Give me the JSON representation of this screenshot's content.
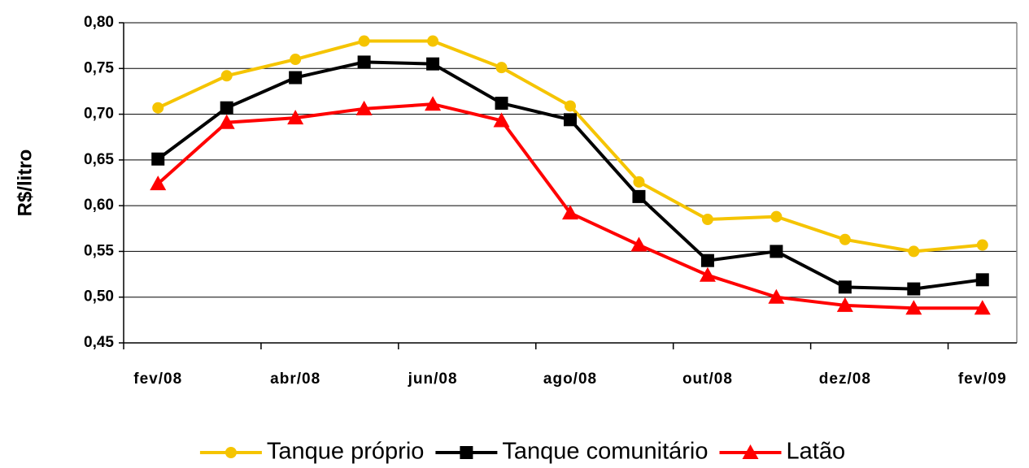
{
  "chart_data": {
    "type": "line",
    "y_label": "R$/litro",
    "categories": [
      "fev/08",
      null,
      "abr/08",
      null,
      "jun/08",
      null,
      "ago/08",
      null,
      "out/08",
      null,
      "dez/08",
      null,
      "fev/09"
    ],
    "series": [
      {
        "name": "Tanque próprio",
        "color": "#f5c400",
        "marker": "circle",
        "values": [
          0.707,
          0.742,
          0.76,
          0.78,
          0.78,
          0.751,
          0.709,
          0.626,
          0.585,
          0.588,
          0.563,
          0.55,
          0.557
        ]
      },
      {
        "name": "Tanque comunitário",
        "color": "#000000",
        "marker": "square",
        "values": [
          0.651,
          0.707,
          0.74,
          0.757,
          0.755,
          0.712,
          0.694,
          0.61,
          0.54,
          0.55,
          0.511,
          0.509,
          0.519
        ]
      },
      {
        "name": "Latão",
        "color": "#ff0000",
        "marker": "triangle",
        "values": [
          0.624,
          0.691,
          0.696,
          0.706,
          0.711,
          0.693,
          0.592,
          0.557,
          0.524,
          0.5,
          0.491,
          0.488,
          0.488
        ]
      }
    ],
    "ylim": [
      0.45,
      0.8
    ],
    "yticks": [
      {
        "value": 0.45,
        "label": "0,45"
      },
      {
        "value": 0.5,
        "label": "0,50"
      },
      {
        "value": 0.55,
        "label": "0,55"
      },
      {
        "value": 0.6,
        "label": "0,60"
      },
      {
        "value": 0.65,
        "label": "0,65"
      },
      {
        "value": 0.7,
        "label": "0,70"
      },
      {
        "value": 0.75,
        "label": "0,75"
      },
      {
        "value": 0.8,
        "label": "0,80"
      }
    ],
    "grid": true,
    "legend": "bottom"
  }
}
